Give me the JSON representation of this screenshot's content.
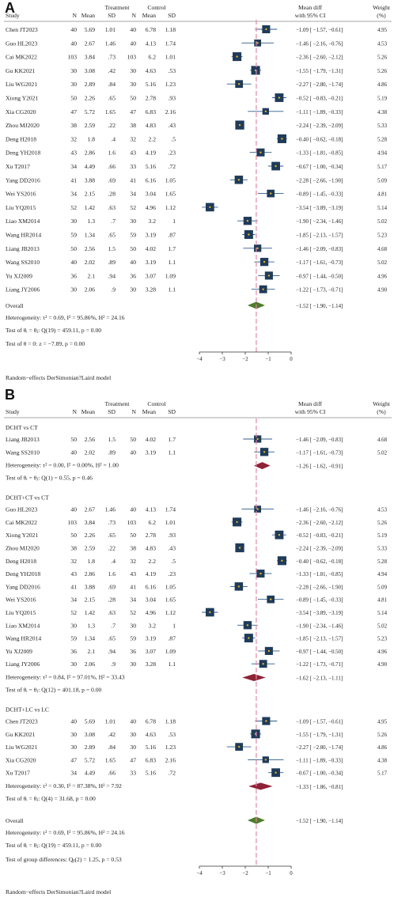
{
  "panel_a_letter": "A",
  "panel_b_letter": "B",
  "chart_data": [
    {
      "type": "forest",
      "panel": "A",
      "headers": {
        "treatment": "Treatment",
        "control": "Control",
        "study": "Study",
        "n_t": "N",
        "mean_t": "Mean",
        "sd_t": "SD",
        "n_c": "N",
        "mean_c": "Mean",
        "sd_c": "SD",
        "md_line1": "Mean diff",
        "md_line2": "with 95% CI",
        "w_line1": "Weight",
        "w_line2": "(%)"
      },
      "xlim": [
        -4,
        0
      ],
      "xticks": [
        -4,
        -3,
        -2,
        -1,
        0
      ],
      "reference_line": -1.52,
      "studies": [
        {
          "study": "Chen JT2023",
          "n1": "40",
          "m1": "5.69",
          "s1": "1.01",
          "n2": "40",
          "m2": "6.78",
          "s2": "1.18",
          "md": -1.09,
          "lo": -1.57,
          "hi": -0.61,
          "ci": "−1.09 [ −1.57, −0.61]",
          "w": "4.95"
        },
        {
          "study": "Guo HL2023",
          "n1": "40",
          "m1": "2.67",
          "s1": "1.46",
          "n2": "40",
          "m2": "4.13",
          "s2": "1.74",
          "md": -1.46,
          "lo": -2.16,
          "hi": -0.76,
          "ci": "−1.46 [ −2.16, −0.76]",
          "w": "4.53"
        },
        {
          "study": "Cai MK2022",
          "n1": "103",
          "m1": "3.84",
          "s1": ".73",
          "n2": "103",
          "m2": "6.2",
          "s2": "1.01",
          "md": -2.36,
          "lo": -2.6,
          "hi": -2.12,
          "ci": "−2.36 [ −2.60, −2.12]",
          "w": "5.26"
        },
        {
          "study": "Gu KK2021",
          "n1": "30",
          "m1": "3.08",
          "s1": ".42",
          "n2": "30",
          "m2": "4.63",
          "s2": ".53",
          "md": -1.55,
          "lo": -1.79,
          "hi": -1.31,
          "ci": "−1.55 [ −1.79, −1.31]",
          "w": "5.26"
        },
        {
          "study": "Liu WG2021",
          "n1": "30",
          "m1": "2.89",
          "s1": ".84",
          "n2": "30",
          "m2": "5.16",
          "s2": "1.23",
          "md": -2.27,
          "lo": -2.8,
          "hi": -1.74,
          "ci": "−2.27 [ −2.80, −1.74]",
          "w": "4.86"
        },
        {
          "study": "Xiong Y2021",
          "n1": "50",
          "m1": "2.26",
          "s1": ".65",
          "n2": "50",
          "m2": "2.78",
          "s2": ".93",
          "md": -0.52,
          "lo": -0.83,
          "hi": -0.21,
          "ci": "−0.52 [ −0.83, −0.21]",
          "w": "5.19"
        },
        {
          "study": "Xia CG2020",
          "n1": "47",
          "m1": "5.72",
          "s1": "1.65",
          "n2": "47",
          "m2": "6.83",
          "s2": "2.16",
          "md": -1.11,
          "lo": -1.89,
          "hi": -0.33,
          "ci": "−1.11 [ −1.89, −0.33]",
          "w": "4.38"
        },
        {
          "study": "Zhou MJ2020",
          "n1": "38",
          "m1": "2.59",
          "s1": ".22",
          "n2": "38",
          "m2": "4.83",
          "s2": ".43",
          "md": -2.24,
          "lo": -2.39,
          "hi": -2.09,
          "ci": "−2.24 [ −2.39, −2.09]",
          "w": "5.33"
        },
        {
          "study": "Deng H2018",
          "n1": "32",
          "m1": "1.8",
          "s1": ".4",
          "n2": "32",
          "m2": "2.2",
          "s2": ".5",
          "md": -0.4,
          "lo": -0.62,
          "hi": -0.18,
          "ci": "−0.40 [ −0.62, −0.18]",
          "w": "5.28"
        },
        {
          "study": "Deng YH2018",
          "n1": "43",
          "m1": "2.86",
          "s1": "1.6",
          "n2": "43",
          "m2": "4.19",
          "s2": ".23",
          "md": -1.33,
          "lo": -1.81,
          "hi": -0.85,
          "ci": "−1.33 [ −1.81, −0.85]",
          "w": "4.94"
        },
        {
          "study": "Xu T2017",
          "n1": "34",
          "m1": "4.49",
          "s1": ".66",
          "n2": "33",
          "m2": "5.16",
          "s2": ".72",
          "md": -0.67,
          "lo": -1.0,
          "hi": -0.34,
          "ci": "−0.67 [ −1.00, −0.34]",
          "w": "5.17"
        },
        {
          "study": "Yang DD2016",
          "n1": "41",
          "m1": "3.88",
          "s1": ".69",
          "n2": "41",
          "m2": "6.16",
          "s2": "1.05",
          "md": -2.28,
          "lo": -2.66,
          "hi": -1.9,
          "ci": "−2.28 [ −2.66, −1.90]",
          "w": "5.09"
        },
        {
          "study": "Wei YS2016",
          "n1": "34",
          "m1": "2.15",
          "s1": ".28",
          "n2": "34",
          "m2": "3.04",
          "s2": "1.65",
          "md": -0.89,
          "lo": -1.45,
          "hi": -0.33,
          "ci": "−0.89 [ −1.45, −0.33]",
          "w": "4.81"
        },
        {
          "study": "Liu YQ2015",
          "n1": "52",
          "m1": "1.42",
          "s1": ".63",
          "n2": "52",
          "m2": "4.96",
          "s2": "1.12",
          "md": -3.54,
          "lo": -3.89,
          "hi": -3.19,
          "ci": "−3.54 [ −3.89, −3.19]",
          "w": "5.14"
        },
        {
          "study": "Liao XM2014",
          "n1": "30",
          "m1": "1.3",
          "s1": ".7",
          "n2": "30",
          "m2": "3.2",
          "s2": "1",
          "md": -1.9,
          "lo": -2.34,
          "hi": -1.46,
          "ci": "−1.90 [ −2.34, −1.46]",
          "w": "5.02"
        },
        {
          "study": "Wang HR2014",
          "n1": "59",
          "m1": "1.34",
          "s1": ".65",
          "n2": "59",
          "m2": "3.19",
          "s2": ".87",
          "md": -1.85,
          "lo": -2.13,
          "hi": -1.57,
          "ci": "−1.85 [ −2.13, −1.57]",
          "w": "5.23"
        },
        {
          "study": "Liang JB2013",
          "n1": "50",
          "m1": "2.56",
          "s1": "1.5",
          "n2": "50",
          "m2": "4.02",
          "s2": "1.7",
          "md": -1.46,
          "lo": -2.09,
          "hi": -0.83,
          "ci": "−1.46 [ −2.09, −0.83]",
          "w": "4.68"
        },
        {
          "study": "Wang SS2010",
          "n1": "40",
          "m1": "2.02",
          "s1": ".89",
          "n2": "40",
          "m2": "3.19",
          "s2": "1.1",
          "md": -1.17,
          "lo": -1.61,
          "hi": -0.73,
          "ci": "−1.17 [ −1.61, −0.73]",
          "w": "5.02"
        },
        {
          "study": "Yu XJ2009",
          "n1": "36",
          "m1": "2.1",
          "s1": ".94",
          "n2": "36",
          "m2": "3.07",
          "s2": "1.09",
          "md": -0.97,
          "lo": -1.44,
          "hi": -0.5,
          "ci": "−0.97 [ −1.44, −0.50]",
          "w": "4.96"
        },
        {
          "study": "Liang JY2006",
          "n1": "30",
          "m1": "2.06",
          "s1": ".9",
          "n2": "30",
          "m2": "3.28",
          "s2": "1.1",
          "md": -1.22,
          "lo": -1.73,
          "hi": -0.71,
          "ci": "−1.22 [ −1.73, −0.71]",
          "w": "4.90"
        }
      ],
      "overall": {
        "label": "Overall",
        "md": -1.52,
        "lo": -1.9,
        "hi": -1.14,
        "ci": "−1.52 [ −1.90, −1.14]",
        "heterogeneity": "Heterogeneity: τ² = 0.69, I² = 95.86%, H² = 24.16",
        "test_qi": "Test of θᵢ = θⱼ: Q(19) = 459.11, p = 0.00",
        "test_q0": "Test of θ = 0: z = −7.89, p = 0.00"
      },
      "footer": "Random−effects DerSimonian?Laird model"
    },
    {
      "type": "forest",
      "panel": "B",
      "headers": {
        "treatment": "Treatment",
        "control": "Control",
        "study": "Study",
        "n_t": "N",
        "mean_t": "Mean",
        "sd_t": "SD",
        "n_c": "N",
        "mean_c": "Mean",
        "sd_c": "SD",
        "md_line1": "Mean diff",
        "md_line2": "with 95% CI",
        "w_line1": "Weight",
        "w_line2": "(%)"
      },
      "xlim": [
        -4,
        0
      ],
      "xticks": [
        -4,
        -3,
        -2,
        -1,
        0
      ],
      "reference_line": -1.52,
      "groups": [
        {
          "name": "DCHT vs CT",
          "studies": [
            {
              "study": "Liang JB2013",
              "n1": "50",
              "m1": "2.56",
              "s1": "1.5",
              "n2": "50",
              "m2": "4.02",
              "s2": "1.7",
              "md": -1.46,
              "lo": -2.09,
              "hi": -0.83,
              "ci": "−1.46 [ −2.09, −0.83]",
              "w": "4.68"
            },
            {
              "study": "Wang SS2010",
              "n1": "40",
              "m1": "2.02",
              "s1": ".89",
              "n2": "40",
              "m2": "3.19",
              "s2": "1.1",
              "md": -1.17,
              "lo": -1.61,
              "hi": -0.73,
              "ci": "−1.17 [ −1.61, −0.73]",
              "w": "5.02"
            }
          ],
          "pooled": {
            "md": -1.26,
            "lo": -1.62,
            "hi": -0.91,
            "ci": "−1.26 [ −1.62, −0.91]"
          },
          "heterogeneity": "Heterogeneity: τ² = 0.00, I² = 0.00%, H² = 1.00",
          "test": "Test of θᵢ = θⱼ: Q(1) = 0.55, p = 0.46"
        },
        {
          "name": "DCHT+CT vs CT",
          "studies": [
            {
              "study": "Guo HL2023",
              "n1": "40",
              "m1": "2.67",
              "s1": "1.46",
              "n2": "40",
              "m2": "4.13",
              "s2": "1.74",
              "md": -1.46,
              "lo": -2.16,
              "hi": -0.76,
              "ci": "−1.46 [ −2.16, −0.76]",
              "w": "4.53"
            },
            {
              "study": "Cai MK2022",
              "n1": "103",
              "m1": "3.84",
              "s1": ".73",
              "n2": "103",
              "m2": "6.2",
              "s2": "1.01",
              "md": -2.36,
              "lo": -2.6,
              "hi": -2.12,
              "ci": "−2.36 [ −2.60, −2.12]",
              "w": "5.26"
            },
            {
              "study": "Xiong Y2021",
              "n1": "50",
              "m1": "2.26",
              "s1": ".65",
              "n2": "50",
              "m2": "2.78",
              "s2": ".93",
              "md": -0.52,
              "lo": -0.83,
              "hi": -0.21,
              "ci": "−0.52 [ −0.83, −0.21]",
              "w": "5.19"
            },
            {
              "study": "Zhou MJ2020",
              "n1": "38",
              "m1": "2.59",
              "s1": ".22",
              "n2": "38",
              "m2": "4.83",
              "s2": ".43",
              "md": -2.24,
              "lo": -2.39,
              "hi": -2.09,
              "ci": "−2.24 [ −2.39, −2.09]",
              "w": "5.33"
            },
            {
              "study": "Deng H2018",
              "n1": "32",
              "m1": "1.8",
              "s1": ".4",
              "n2": "32",
              "m2": "2.2",
              "s2": ".5",
              "md": -0.4,
              "lo": -0.62,
              "hi": -0.18,
              "ci": "−0.40 [ −0.62, −0.18]",
              "w": "5.28"
            },
            {
              "study": "Deng YH2018",
              "n1": "43",
              "m1": "2.86",
              "s1": "1.6",
              "n2": "43",
              "m2": "4.19",
              "s2": ".23",
              "md": -1.33,
              "lo": -1.81,
              "hi": -0.85,
              "ci": "−1.33 [ −1.81, −0.85]",
              "w": "4.94"
            },
            {
              "study": "Yang DD2016",
              "n1": "41",
              "m1": "3.88",
              "s1": ".69",
              "n2": "41",
              "m2": "6.16",
              "s2": "1.05",
              "md": -2.28,
              "lo": -2.66,
              "hi": -1.9,
              "ci": "−2.28 [ −2.66, −1.90]",
              "w": "5.09"
            },
            {
              "study": "Wei YS2016",
              "n1": "34",
              "m1": "2.15",
              "s1": ".28",
              "n2": "34",
              "m2": "3.04",
              "s2": "1.65",
              "md": -0.89,
              "lo": -1.45,
              "hi": -0.33,
              "ci": "−0.89 [ −1.45, −0.33]",
              "w": "4.81"
            },
            {
              "study": "Liu YQ2015",
              "n1": "52",
              "m1": "1.42",
              "s1": ".63",
              "n2": "52",
              "m2": "4.96",
              "s2": "1.12",
              "md": -3.54,
              "lo": -3.89,
              "hi": -3.19,
              "ci": "−3.54 [ −3.89, −3.19]",
              "w": "5.14"
            },
            {
              "study": "Liao XM2014",
              "n1": "30",
              "m1": "1.3",
              "s1": ".7",
              "n2": "30",
              "m2": "3.2",
              "s2": "1",
              "md": -1.9,
              "lo": -2.34,
              "hi": -1.46,
              "ci": "−1.90 [ −2.34, −1.46]",
              "w": "5.02"
            },
            {
              "study": "Wang HR2014",
              "n1": "59",
              "m1": "1.34",
              "s1": ".65",
              "n2": "59",
              "m2": "3.19",
              "s2": ".87",
              "md": -1.85,
              "lo": -2.13,
              "hi": -1.57,
              "ci": "−1.85 [ −2.13, −1.57]",
              "w": "5.23"
            },
            {
              "study": "Yu XJ2009",
              "n1": "36",
              "m1": "2.1",
              "s1": ".94",
              "n2": "36",
              "m2": "3.07",
              "s2": "1.09",
              "md": -0.97,
              "lo": -1.44,
              "hi": -0.5,
              "ci": "−0.97 [ −1.44, −0.50]",
              "w": "4.96"
            },
            {
              "study": "Liang JY2006",
              "n1": "30",
              "m1": "2.06",
              "s1": ".9",
              "n2": "30",
              "m2": "3.28",
              "s2": "1.1",
              "md": -1.22,
              "lo": -1.73,
              "hi": -0.71,
              "ci": "−1.22 [ −1.73, −0.71]",
              "w": "4.90"
            }
          ],
          "pooled": {
            "md": -1.62,
            "lo": -2.13,
            "hi": -1.11,
            "ci": "−1.62 [ −2.13, −1.11]"
          },
          "heterogeneity": "Heterogeneity: τ² = 0.84, I² = 97.01%, H² = 33.43",
          "test": "Test of θᵢ = θⱼ: Q(12) = 401.18, p = 0.00"
        },
        {
          "name": "DCHT+LC vs LC",
          "studies": [
            {
              "study": "Chen JT2023",
              "n1": "40",
              "m1": "5.69",
              "s1": "1.01",
              "n2": "40",
              "m2": "6.78",
              "s2": "1.18",
              "md": -1.09,
              "lo": -1.57,
              "hi": -0.61,
              "ci": "−1.09 [ −1.57, −0.61]",
              "w": "4.95"
            },
            {
              "study": "Gu KK2021",
              "n1": "30",
              "m1": "3.08",
              "s1": ".42",
              "n2": "30",
              "m2": "4.63",
              "s2": ".53",
              "md": -1.55,
              "lo": -1.79,
              "hi": -1.31,
              "ci": "−1.55 [ −1.79, −1.31]",
              "w": "5.26"
            },
            {
              "study": "Liu WG2021",
              "n1": "30",
              "m1": "2.89",
              "s1": ".84",
              "n2": "30",
              "m2": "5.16",
              "s2": "1.23",
              "md": -2.27,
              "lo": -2.8,
              "hi": -1.74,
              "ci": "−2.27 [ −2.80, −1.74]",
              "w": "4.86"
            },
            {
              "study": "Xia CG2020",
              "n1": "47",
              "m1": "5.72",
              "s1": "1.65",
              "n2": "47",
              "m2": "6.83",
              "s2": "2.16",
              "md": -1.11,
              "lo": -1.89,
              "hi": -0.33,
              "ci": "−1.11 [ −1.89, −0.33]",
              "w": "4.38"
            },
            {
              "study": "Xu T2017",
              "n1": "34",
              "m1": "4.49",
              "s1": ".66",
              "n2": "33",
              "m2": "5.16",
              "s2": ".72",
              "md": -0.67,
              "lo": -1.0,
              "hi": -0.34,
              "ci": "−0.67 [ −1.00, −0.34]",
              "w": "5.17"
            }
          ],
          "pooled": {
            "md": -1.33,
            "lo": -1.86,
            "hi": -0.81,
            "ci": "−1.33 [ −1.86, −0.81]"
          },
          "heterogeneity": "Heterogeneity: τ² = 0.30, I² = 87.38%, H² = 7.92",
          "test": "Test of θᵢ = θⱼ: Q(4) = 31.68, p = 0.00"
        }
      ],
      "overall": {
        "label": "Overall",
        "md": -1.52,
        "lo": -1.9,
        "hi": -1.14,
        "ci": "−1.52 [ −1.90, −1.14]",
        "heterogeneity": "Heterogeneity: τ² = 0.69, I² = 95.86%, H² = 24.16",
        "test_qi": "Test of θᵢ = θⱼ: Q(19) = 459.11, p = 0.00"
      },
      "group_test": "Test of group differences: Qᵦ(2) = 1.25, p = 0.53",
      "footer": "Random−effects DerSimonian?Laird model"
    }
  ],
  "colors": {
    "square": "#1f3b5a",
    "dot": "#e6b020",
    "ci_line": "#2c5a8a",
    "ref_line": "#e08aa6",
    "overall_diamond": "#4f7c2c",
    "subgroup_diamond": "#8e2335",
    "rule": "#888888"
  }
}
